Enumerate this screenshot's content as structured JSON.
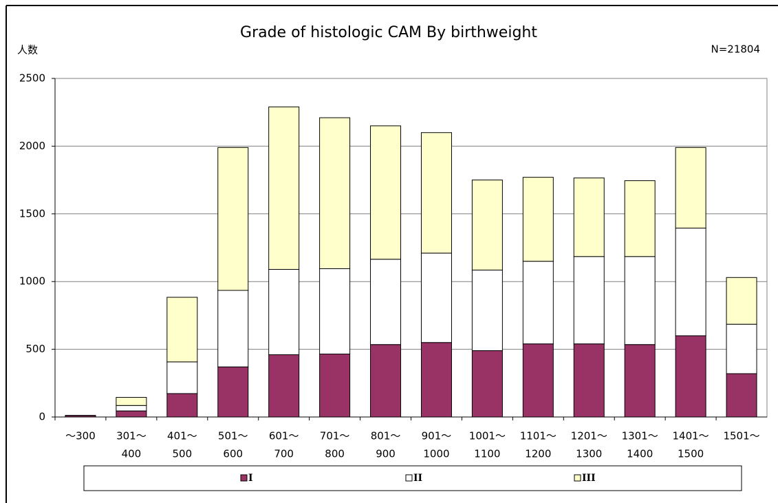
{
  "chart_data": {
    "type": "bar",
    "stacked": true,
    "title": "Grade of histologic CAM By birthweight",
    "ylabel": "人数",
    "annotation": "N=21804",
    "categories": [
      [
        "～300"
      ],
      [
        "301～",
        "400"
      ],
      [
        "401～",
        "500"
      ],
      [
        "501～",
        "600"
      ],
      [
        "601～",
        "700"
      ],
      [
        "701～",
        "800"
      ],
      [
        "801～",
        "900"
      ],
      [
        "901～",
        "1000"
      ],
      [
        "1001～",
        "1100"
      ],
      [
        "1101～",
        "1200"
      ],
      [
        "1201～",
        "1300"
      ],
      [
        "1301～",
        "1400"
      ],
      [
        "1401～",
        "1500"
      ],
      [
        "1501～"
      ]
    ],
    "series": [
      {
        "name": "I",
        "color": "#993366",
        "values": [
          10,
          45,
          173,
          370,
          460,
          465,
          535,
          550,
          490,
          540,
          540,
          535,
          600,
          320
        ]
      },
      {
        "name": "II",
        "color": "#ffffff",
        "values": [
          2,
          40,
          234,
          565,
          630,
          630,
          630,
          660,
          595,
          610,
          645,
          650,
          795,
          365
        ]
      },
      {
        "name": "III",
        "color": "#ffffcc",
        "values": [
          0,
          60,
          477,
          1055,
          1200,
          1115,
          985,
          890,
          665,
          620,
          580,
          560,
          595,
          345
        ]
      }
    ],
    "ylim": [
      0,
      2500
    ],
    "yticks": [
      0,
      500,
      1000,
      1500,
      2000,
      2500
    ],
    "grid": true,
    "legend": "bottom"
  }
}
